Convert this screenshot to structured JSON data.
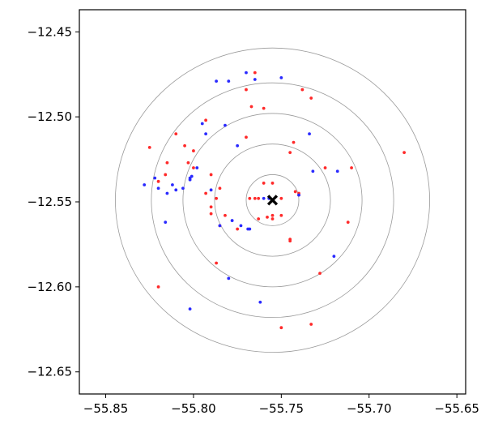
{
  "chart_data": {
    "type": "scatter",
    "title": "",
    "xlabel": "",
    "ylabel": "",
    "xlim": [
      -55.865,
      -55.645
    ],
    "ylim": [
      -12.663,
      -12.437
    ],
    "grid": false,
    "x_ticks": [
      -55.85,
      -55.8,
      -55.75,
      -55.7,
      -55.65
    ],
    "x_tick_labels": [
      "−55.85",
      "−55.80",
      "−55.75",
      "−55.70",
      "−55.65"
    ],
    "y_ticks": [
      -12.45,
      -12.5,
      -12.55,
      -12.6,
      -12.65
    ],
    "y_tick_labels": [
      "−12.45",
      "−12.50",
      "−12.55",
      "−12.60",
      "−12.65"
    ],
    "center": {
      "x": -55.755,
      "y": -12.549,
      "marker": "X",
      "color": "#000000"
    },
    "rings": {
      "radii": [
        0.015,
        0.033,
        0.051,
        0.069,
        0.0895
      ],
      "color": "#9a9a9a"
    },
    "series": [
      {
        "color": "#ff2a2a",
        "x": [
          -55.76,
          -55.755,
          -55.755,
          -55.75,
          -55.745,
          -55.745,
          -55.742,
          -55.758,
          -55.765,
          -55.768,
          -55.77,
          -55.785,
          -55.787,
          -55.79,
          -55.79,
          -55.793,
          -55.8,
          -55.8,
          -55.803,
          -55.805,
          -55.81,
          -55.815,
          -55.816,
          -55.82,
          -55.825,
          -55.82,
          -55.77,
          -55.765,
          -55.767,
          -55.76,
          -55.745,
          -55.743,
          -55.738,
          -55.733,
          -55.74,
          -55.728,
          -55.71,
          -55.712,
          -55.725,
          -55.733,
          -55.68,
          -55.787,
          -55.775,
          -55.79,
          -55.75,
          -55.74,
          -55.782,
          -55.785,
          -55.763,
          -55.755,
          -55.75,
          -55.763,
          -55.793
        ],
        "y": [
          -12.539,
          -12.539,
          -12.558,
          -12.558,
          -12.572,
          -12.573,
          -12.544,
          -12.559,
          -12.548,
          -12.548,
          -12.512,
          -12.542,
          -12.548,
          -12.553,
          -12.557,
          -12.545,
          -12.52,
          -12.53,
          -12.527,
          -12.517,
          -12.51,
          -12.527,
          -12.534,
          -12.538,
          -12.518,
          -12.6,
          -12.484,
          -12.474,
          -12.494,
          -12.495,
          -12.521,
          -12.515,
          -12.484,
          -12.489,
          -12.546,
          -12.592,
          -12.53,
          -12.562,
          -12.53,
          -12.622,
          -12.521,
          -12.586,
          -12.566,
          -12.534,
          -12.624,
          -12.545,
          -12.558,
          -12.564,
          -12.56,
          -12.56,
          -12.548,
          -12.548,
          -12.502
        ]
      },
      {
        "color": "#2a2aff",
        "x": [
          -55.76,
          -55.757,
          -55.77,
          -55.765,
          -55.78,
          -55.782,
          -55.775,
          -55.768,
          -55.787,
          -55.79,
          -55.793,
          -55.795,
          -55.798,
          -55.801,
          -55.802,
          -55.802,
          -55.806,
          -55.81,
          -55.812,
          -55.815,
          -55.816,
          -55.82,
          -55.822,
          -55.828,
          -55.778,
          -55.773,
          -55.769,
          -55.785,
          -55.75,
          -55.734,
          -55.732,
          -55.718,
          -55.72,
          -55.78,
          -55.762,
          -55.802,
          -55.74
        ],
        "y": [
          -12.548,
          -12.548,
          -12.474,
          -12.478,
          -12.479,
          -12.505,
          -12.517,
          -12.566,
          -12.479,
          -12.543,
          -12.51,
          -12.504,
          -12.53,
          -12.535,
          -12.536,
          -12.537,
          -12.542,
          -12.543,
          -12.54,
          -12.545,
          -12.562,
          -12.542,
          -12.536,
          -12.54,
          -12.561,
          -12.564,
          -12.566,
          -12.564,
          -12.477,
          -12.51,
          -12.532,
          -12.532,
          -12.582,
          -12.595,
          -12.609,
          -12.613,
          -12.546
        ]
      }
    ]
  }
}
